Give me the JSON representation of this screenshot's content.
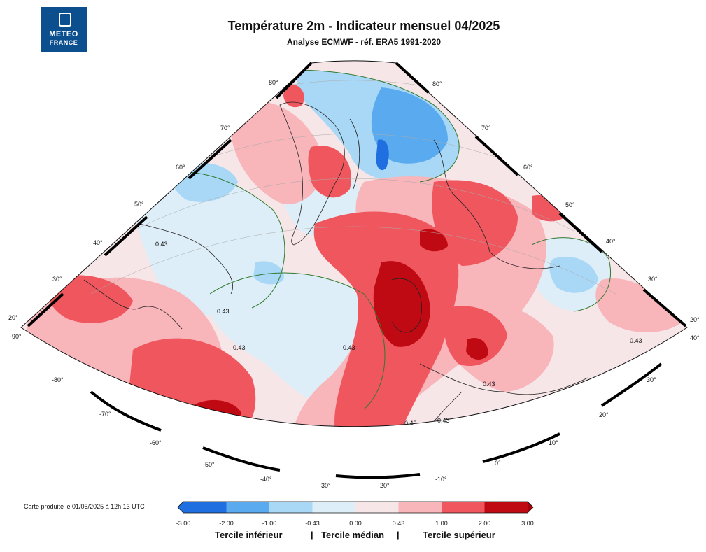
{
  "logo": {
    "line1": "METEO",
    "line2": "FRANCE"
  },
  "header": {
    "title": "Température 2m - Indicateur mensuel 04/2025",
    "subtitle": "Analyse ECMWF - réf. ERA5 1991-2020"
  },
  "credit": "Carte produite le 01/05/2025 à 12h 13 UTC",
  "map": {
    "region": "North Atlantic / Europe conic projection",
    "contour_labels": [
      "0.43",
      "0.43",
      "0.43",
      "0.43",
      "0.43",
      "0.43",
      "0.43",
      "0.43"
    ],
    "lat_labels_left": [
      "80°",
      "70°",
      "60°",
      "50°",
      "40°",
      "30°",
      "20°"
    ],
    "lat_labels_right": [
      "80°",
      "70°",
      "60°",
      "50°",
      "40°",
      "30°",
      "20°"
    ],
    "lon_labels": [
      "-90°",
      "-80°",
      "-70°",
      "-60°",
      "-50°",
      "-40°",
      "-30°",
      "-20°",
      "-10°",
      "0°",
      "10°",
      "20°",
      "30°",
      "40°"
    ]
  },
  "colorbar": {
    "ticks": [
      "-3.00",
      "-2.00",
      "-1.00",
      "-0.43",
      "0.00",
      "0.43",
      "1.00",
      "2.00",
      "3.00"
    ],
    "colors": [
      "#1f6fe0",
      "#5aaaf0",
      "#a9d8f6",
      "#ddeef8",
      "#f7e6e8",
      "#f8b5ba",
      "#f0565e",
      "#bf0a13"
    ],
    "left_arrow_color": "#1f6fe0",
    "right_arrow_color": "#a6000c"
  },
  "terciles": {
    "lower": "Tercile inférieur",
    "sep1": "|",
    "median": "Tercile médian",
    "sep2": "|",
    "upper": "Tercile supérieur"
  }
}
